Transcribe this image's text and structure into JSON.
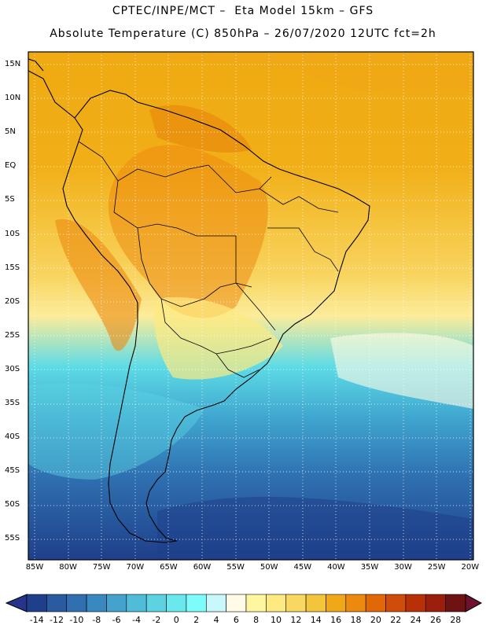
{
  "header": {
    "line1": "CPTEC/INPE/MCT –  Eta Model 15km – GFS",
    "line2": "Absolute Temperature (C) 850hPa – 26/07/2020 12UTC fct=2h"
  },
  "map": {
    "lat_labels": [
      "15N",
      "10N",
      "5N",
      "EQ",
      "5S",
      "10S",
      "15S",
      "20S",
      "25S",
      "30S",
      "35S",
      "40S",
      "45S",
      "50S",
      "55S"
    ],
    "lon_labels": [
      "85W",
      "80W",
      "75W",
      "70W",
      "65W",
      "60W",
      "55W",
      "50W",
      "45W",
      "40W",
      "35W",
      "30W",
      "25W",
      "20W"
    ]
  },
  "colorbar": {
    "colors": [
      "#1f3f8a",
      "#2a5aa0",
      "#3070b0",
      "#3a88c0",
      "#44a2cc",
      "#50bcd8",
      "#5cd2e2",
      "#6ae8ee",
      "#7efcfc",
      "#c8f8fc",
      "#fffbe6",
      "#fff7a0",
      "#fdea80",
      "#f8d860",
      "#f3c53c",
      "#f0a818",
      "#ec8a10",
      "#e06808",
      "#d04c0a",
      "#b83008",
      "#9a1f0c",
      "#6e1212"
    ],
    "labels": [
      "-14",
      "-12",
      "-10",
      "-8",
      "-6",
      "-4",
      "-2",
      "0",
      "2",
      "4",
      "6",
      "8",
      "10",
      "12",
      "14",
      "16",
      "18",
      "20",
      "22",
      "24",
      "26",
      "28"
    ]
  }
}
